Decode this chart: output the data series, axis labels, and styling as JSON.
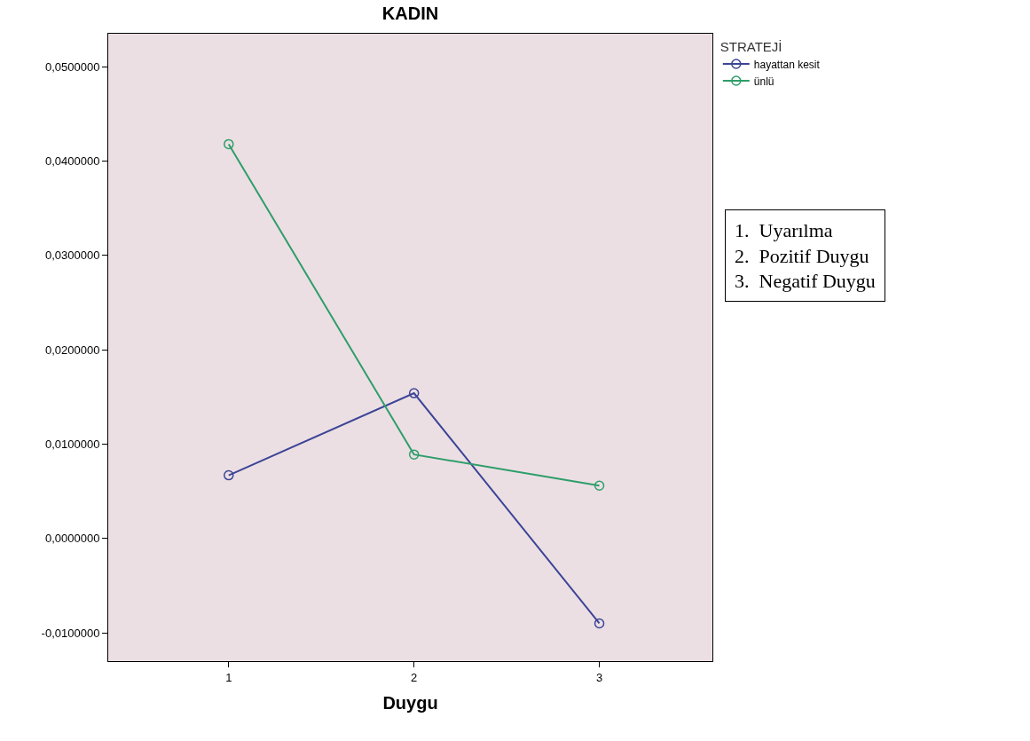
{
  "chart_data": {
    "type": "line",
    "title": "KADIN",
    "xlabel": "Duygu",
    "legend_title": "STRATEJİ",
    "x": [
      1,
      2,
      3
    ],
    "series": [
      {
        "name": "hayattan kesit",
        "color": "#3c4596",
        "values": [
          0.0067,
          0.0154,
          -0.009
        ]
      },
      {
        "name": "ünlü",
        "color": "#2e9e6a",
        "values": [
          0.0418,
          0.0089,
          0.0056
        ]
      }
    ],
    "xlim": [
      0.35,
      3.61
    ],
    "xticks": [
      1,
      2,
      3
    ],
    "ylim": [
      -0.013,
      0.0535
    ],
    "yticks": [
      {
        "value": -0.01,
        "label": "-0,0100000"
      },
      {
        "value": 0,
        "label": "0,0000000"
      },
      {
        "value": 0.01,
        "label": "0,0100000"
      },
      {
        "value": 0.02,
        "label": "0,0200000"
      },
      {
        "value": 0.03,
        "label": "0,0300000"
      },
      {
        "value": 0.04,
        "label": "0,0400000"
      },
      {
        "value": 0.05,
        "label": "0,0500000"
      }
    ],
    "marker": "circle",
    "grid": false,
    "legend": "top right",
    "annotations": [
      "1.  Uyarılma",
      "2.  Pozitif Duygu",
      "3.  Negatif Duygu"
    ]
  }
}
